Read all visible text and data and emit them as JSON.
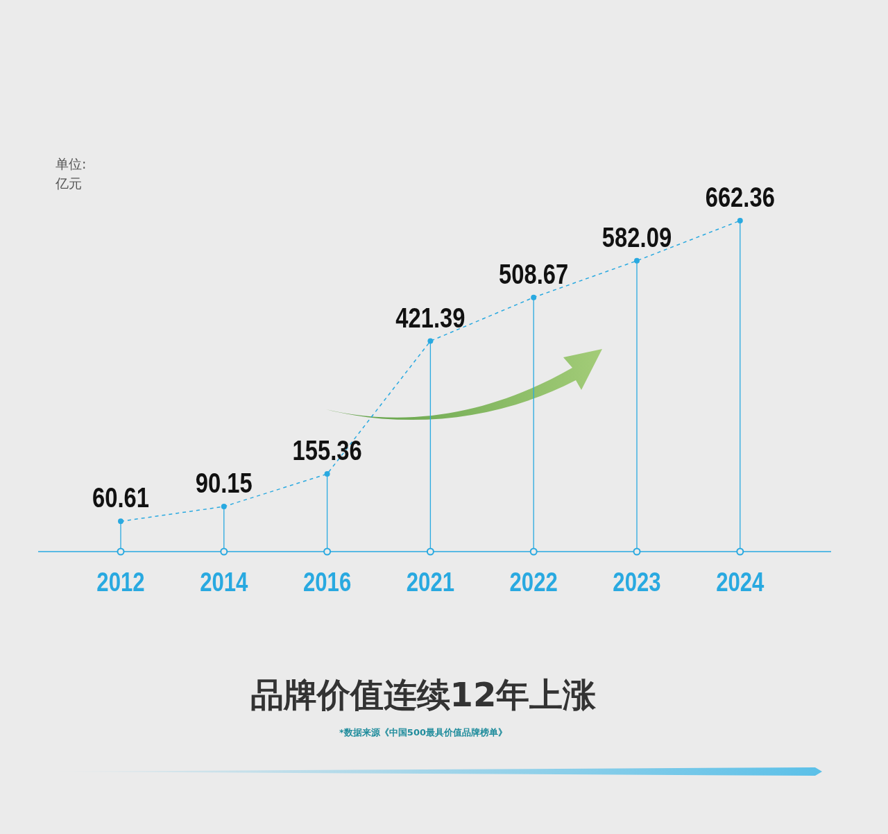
{
  "chart_data": {
    "type": "line",
    "title": "品牌价值连续12年上涨",
    "ylabel": "单位: 亿元",
    "categories": [
      "2012",
      "2014",
      "2016",
      "2021",
      "2022",
      "2023",
      "2024"
    ],
    "values": [
      60.61,
      90.15,
      155.36,
      421.39,
      508.67,
      582.09,
      662.36
    ],
    "color": "#29a9e0",
    "line_style": "dashed",
    "marker": "circle",
    "data_labels": true,
    "grid": "x",
    "annotations": [
      "*数据来源《中国500最具价值品牌榜单》"
    ]
  }
}
